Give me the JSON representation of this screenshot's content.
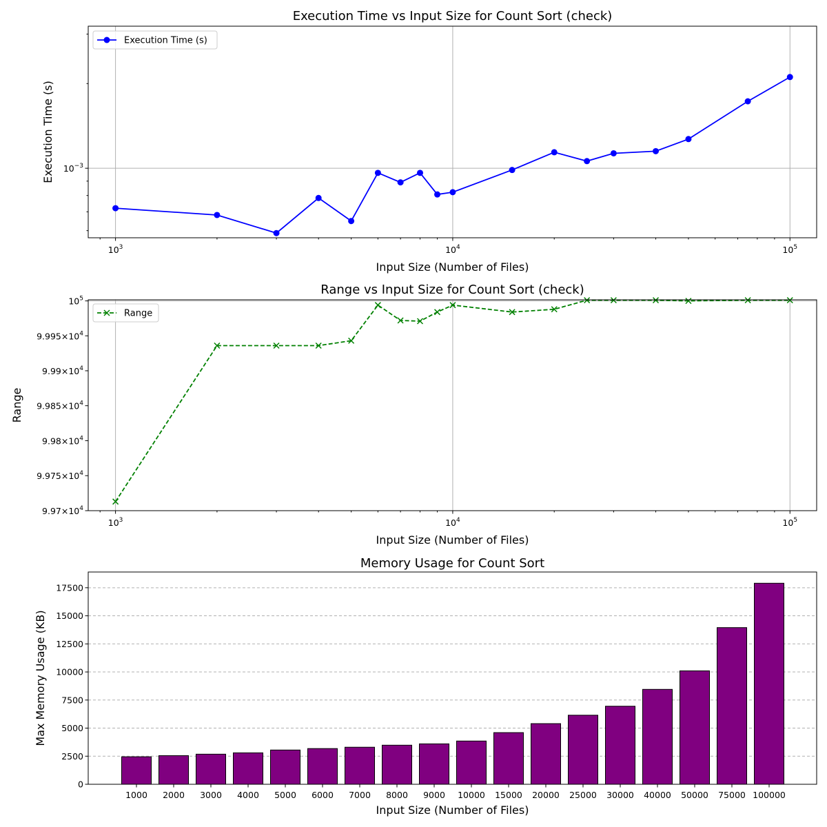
{
  "chart_data": [
    {
      "type": "line",
      "title": "Execution Time vs Input Size for Count Sort (check)",
      "xlabel": "Input Size (Number of Files)",
      "ylabel": "Execution Time (s)",
      "x_scale": "log",
      "y_scale": "log",
      "xlim": [
        830,
        120000
      ],
      "ylim": [
        0.000566,
        0.0032
      ],
      "x_ticks": [
        {
          "value": 1000,
          "base": "10",
          "exp": "3"
        },
        {
          "value": 10000,
          "base": "10",
          "exp": "4"
        },
        {
          "value": 100000,
          "base": "10",
          "exp": "5"
        }
      ],
      "y_ticks": [
        {
          "value": 0.001,
          "base": "10",
          "exp": "−3"
        }
      ],
      "grid": true,
      "legend": "upper-left",
      "series": [
        {
          "name": "Execution Time (s)",
          "color": "#0000ff",
          "marker": "circle",
          "linestyle": "solid",
          "x": [
            1000,
            2000,
            3000,
            4000,
            5000,
            6000,
            7000,
            8000,
            9000,
            10000,
            15000,
            20000,
            25000,
            30000,
            40000,
            50000,
            75000,
            100000
          ],
          "y": [
            0.000721,
            0.000682,
            0.000588,
            0.000784,
            0.000649,
            0.000963,
            0.000891,
            0.000963,
            0.000807,
            0.000822,
            0.000986,
            0.00114,
            0.00106,
            0.00113,
            0.00115,
            0.00127,
            0.00173,
            0.00211
          ]
        }
      ]
    },
    {
      "type": "line",
      "title": "Range vs Input Size for Count Sort (check)",
      "xlabel": "Input Size (Number of Files)",
      "ylabel": "Range",
      "x_scale": "log",
      "y_scale": "log",
      "xlim": [
        830,
        120000
      ],
      "ylim": [
        99700,
        100001.6
      ],
      "x_ticks": [
        {
          "value": 1000,
          "base": "10",
          "exp": "3"
        },
        {
          "value": 10000,
          "base": "10",
          "exp": "4"
        },
        {
          "value": 100000,
          "base": "10",
          "exp": "5"
        }
      ],
      "y_ticks": [
        {
          "value": 100000,
          "mant": "",
          "base": "10",
          "exp": "5"
        },
        {
          "value": 99950,
          "mant": "9.995×",
          "base": "10",
          "exp": "4"
        },
        {
          "value": 99900,
          "mant": "9.99×",
          "base": "10",
          "exp": "4"
        },
        {
          "value": 99850,
          "mant": "9.985×",
          "base": "10",
          "exp": "4"
        },
        {
          "value": 99800,
          "mant": "9.98×",
          "base": "10",
          "exp": "4"
        },
        {
          "value": 99750,
          "mant": "9.975×",
          "base": "10",
          "exp": "4"
        },
        {
          "value": 99700,
          "mant": "9.97×",
          "base": "10",
          "exp": "4"
        }
      ],
      "grid": true,
      "legend": "upper-left",
      "series": [
        {
          "name": "Range",
          "color": "#008000",
          "marker": "x",
          "linestyle": "dashed",
          "x": [
            1000,
            2000,
            3000,
            4000,
            5000,
            6000,
            7000,
            8000,
            9000,
            10000,
            15000,
            20000,
            25000,
            30000,
            40000,
            50000,
            75000,
            100000
          ],
          "y": [
            99713,
            99936,
            99936,
            99936,
            99943,
            99994,
            99972,
            99971,
            99984,
            99994,
            99984,
            99988,
            100001,
            100001,
            100001,
            100000,
            100001,
            100001
          ]
        }
      ]
    },
    {
      "type": "bar",
      "title": "Memory Usage for Count Sort",
      "xlabel": "Input Size (Number of Files)",
      "ylabel": "Max Memory Usage (KB)",
      "ylim": [
        0,
        18900
      ],
      "y_ticks": [
        0,
        2500,
        5000,
        7500,
        10000,
        12500,
        15000,
        17500
      ],
      "grid": "y-dashed",
      "bar_color": "#800080",
      "edge_color": "#000000",
      "categories": [
        "1000",
        "2000",
        "3000",
        "4000",
        "5000",
        "6000",
        "7000",
        "8000",
        "9000",
        "10000",
        "15000",
        "20000",
        "25000",
        "30000",
        "40000",
        "50000",
        "75000",
        "100000"
      ],
      "values": [
        2450,
        2550,
        2680,
        2800,
        3050,
        3180,
        3300,
        3480,
        3600,
        3850,
        4600,
        5400,
        6150,
        6950,
        8450,
        10100,
        13950,
        17900
      ]
    }
  ]
}
